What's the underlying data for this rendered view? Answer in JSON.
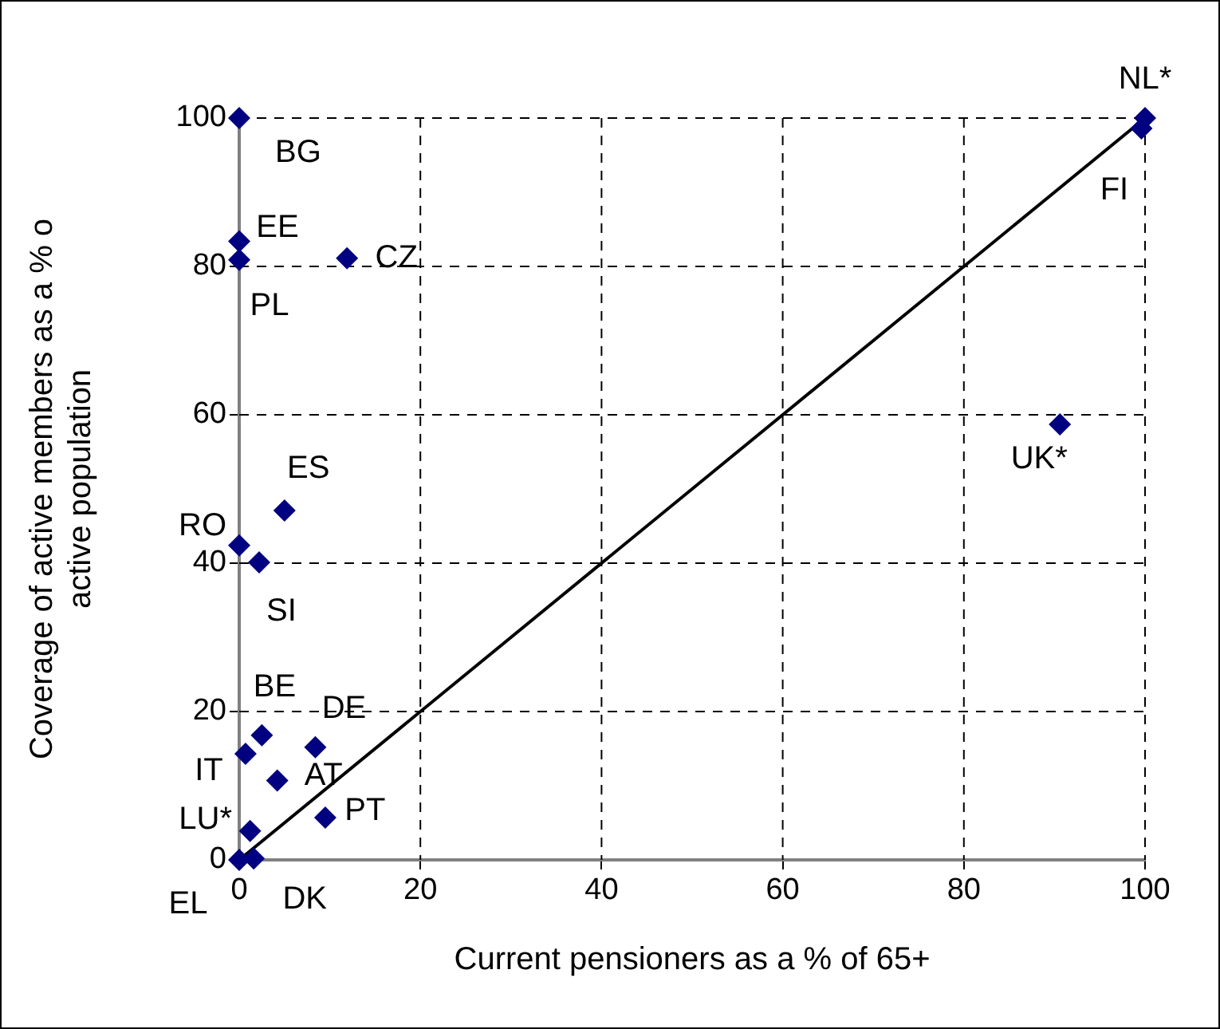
{
  "chart_data": {
    "type": "scatter",
    "xlabel": "Current pensioners as a % of 65+",
    "ylabel": "Coverage of active members as a % o\nactive population",
    "xlim": [
      0,
      100
    ],
    "ylim": [
      0,
      100
    ],
    "xticks": [
      0,
      20,
      40,
      60,
      80,
      100
    ],
    "yticks": [
      0,
      20,
      40,
      60,
      80,
      100
    ],
    "grid": true,
    "legend": false,
    "marker": "diamond",
    "series": [
      {
        "type": "scatter",
        "color": "#000080",
        "x": [
          100,
          99.6,
          90.6,
          0,
          0,
          0,
          11.9,
          5,
          0,
          2.2,
          2.5,
          0.7,
          8.4,
          4.2,
          9.5,
          1.2,
          0,
          1.6
        ],
        "values": [
          100,
          98.6,
          58.7,
          100,
          83.4,
          80.9,
          81.1,
          47.1,
          42.4,
          40.1,
          16.8,
          14.3,
          15.2,
          10.7,
          5.7,
          3.9,
          0,
          0.2
        ]
      },
      {
        "type": "line",
        "color": "#000000",
        "marker": "none",
        "x": [
          0,
          100
        ],
        "values": [
          0,
          100
        ]
      }
    ],
    "annotations": [
      {
        "text": "NL*",
        "x": 100,
        "y": 100
      },
      {
        "text": "FI",
        "x": 99.6,
        "y": 98.6
      },
      {
        "text": "UK*",
        "x": 90.6,
        "y": 58.7
      },
      {
        "text": "BG",
        "x": 0,
        "y": 100
      },
      {
        "text": "EE",
        "x": 0,
        "y": 83.4
      },
      {
        "text": "PL",
        "x": 0,
        "y": 80.9
      },
      {
        "text": "CZ",
        "x": 11.9,
        "y": 81.1
      },
      {
        "text": "ES",
        "x": 5,
        "y": 47.1
      },
      {
        "text": "RO",
        "x": 0,
        "y": 42.4
      },
      {
        "text": "SI",
        "x": 2.2,
        "y": 40.1
      },
      {
        "text": "BE",
        "x": 2.5,
        "y": 16.8
      },
      {
        "text": "IT",
        "x": 0.7,
        "y": 14.3
      },
      {
        "text": "DE",
        "x": 8.4,
        "y": 15.2
      },
      {
        "text": "AT",
        "x": 4.2,
        "y": 10.7
      },
      {
        "text": "PT",
        "x": 9.5,
        "y": 5.7
      },
      {
        "text": "LU*",
        "x": 1.2,
        "y": 3.9
      },
      {
        "text": "EL",
        "x": 0,
        "y": 0
      },
      {
        "text": "DK",
        "x": 1.6,
        "y": 0.2
      }
    ]
  }
}
